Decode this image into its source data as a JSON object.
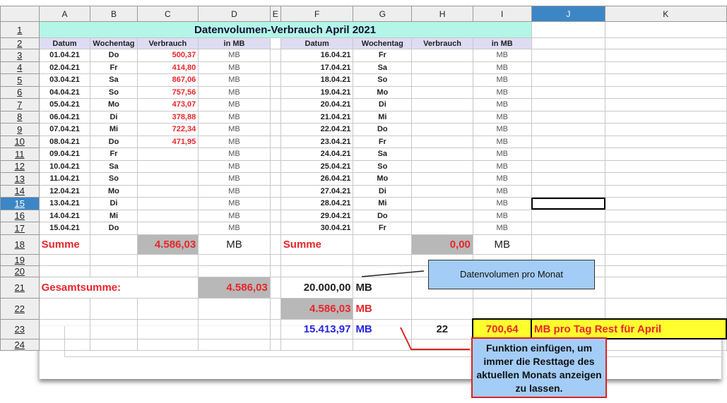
{
  "columns": [
    "",
    "A",
    "B",
    "C",
    "D",
    "E",
    "F",
    "G",
    "H",
    "I",
    "J",
    "K"
  ],
  "selected_cell": "J15",
  "title": "Datenvolumen-Verbrauch April 2021",
  "headers_left": [
    "Datum",
    "Wochentag",
    "Verbrauch",
    "in MB"
  ],
  "headers_right": [
    "Datum",
    "Wochentag",
    "Verbrauch",
    "in MB"
  ],
  "unit": "MB",
  "left_rows": [
    [
      "01.04.21",
      "Do",
      "500,37"
    ],
    [
      "02.04.21",
      "Fr",
      "414,80"
    ],
    [
      "03.04.21",
      "Sa",
      "867,06"
    ],
    [
      "04.04.21",
      "So",
      "757,56"
    ],
    [
      "05.04.21",
      "Mo",
      "473,07"
    ],
    [
      "06.04.21",
      "Di",
      "378,88"
    ],
    [
      "07.04.21",
      "Mi",
      "722,34"
    ],
    [
      "08.04.21",
      "Do",
      "471,95"
    ],
    [
      "09.04.21",
      "Fr",
      ""
    ],
    [
      "10.04.21",
      "Sa",
      ""
    ],
    [
      "11.04.21",
      "So",
      ""
    ],
    [
      "12.04.21",
      "Mo",
      ""
    ],
    [
      "13.04.21",
      "Di",
      ""
    ],
    [
      "14.04.21",
      "Mi",
      ""
    ],
    [
      "15.04.21",
      "Do",
      ""
    ]
  ],
  "right_rows": [
    [
      "16.04.21",
      "Fr"
    ],
    [
      "17.04.21",
      "Sa"
    ],
    [
      "18.04.21",
      "So"
    ],
    [
      "19.04.21",
      "Mo"
    ],
    [
      "20.04.21",
      "Di"
    ],
    [
      "21.04.21",
      "Mi"
    ],
    [
      "22.04.21",
      "Do"
    ],
    [
      "23.04.21",
      "Fr"
    ],
    [
      "24.04.21",
      "Sa"
    ],
    [
      "25.04.21",
      "So"
    ],
    [
      "26.04.21",
      "Mo"
    ],
    [
      "27.04.21",
      "Di"
    ],
    [
      "28.04.21",
      "Mi"
    ],
    [
      "29.04.21",
      "Do"
    ],
    [
      "30.04.21",
      "Fr"
    ]
  ],
  "summe": {
    "label": "Summe",
    "left_value": "4.586,03",
    "right_value": "0,00"
  },
  "gesamt": {
    "label": "Gesamtsumme:",
    "value": "4.586,03",
    "volume": "20.000,00",
    "used": "4.586,03",
    "rest": "15.413,97",
    "rest_days": "22",
    "per_day": "700,64",
    "per_day_label": "MB pro Tag Rest für April"
  },
  "callouts": {
    "volume": "Datenvolumen pro Monat",
    "function": "Funktion einfügen, um immer die Resttage des aktuellen Monats anzeigen zu lassen."
  }
}
